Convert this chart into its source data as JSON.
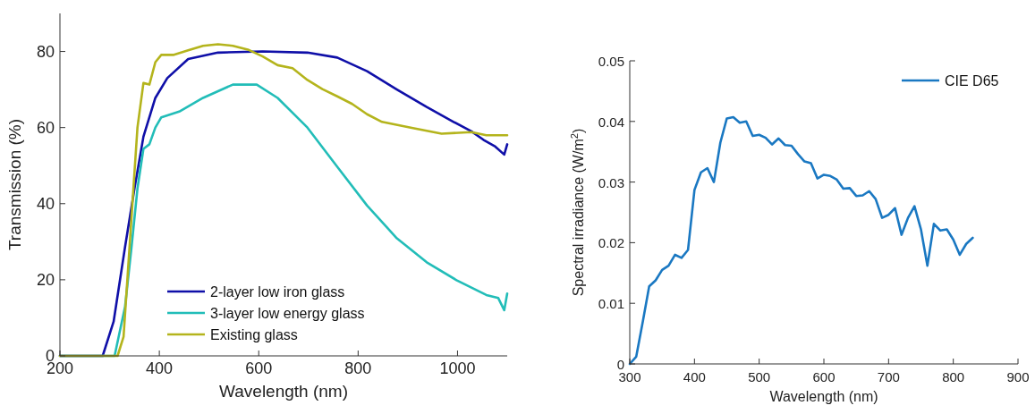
{
  "chart_data": [
    {
      "type": "line",
      "xlabel": "Wavelength (nm)",
      "ylabel": "Transmission (%)",
      "xlim": [
        200,
        1100
      ],
      "xticks": [
        200,
        400,
        600,
        800,
        1000
      ],
      "ylim": [
        0,
        90
      ],
      "yticks": [
        0,
        20,
        40,
        60,
        80
      ],
      "grid": false,
      "legend": "bottom",
      "line_style": "solid",
      "series": [
        {
          "name": "2-layer low iron glass",
          "color": "#0f0fa8",
          "x": [
            200,
            286,
            308,
            331,
            350,
            368,
            392,
            416,
            458,
            518,
            608,
            698,
            758,
            818,
            878,
            938,
            992,
            1028,
            1052,
            1076,
            1094,
            1100
          ],
          "values": [
            0,
            0,
            9,
            28.6,
            44,
            57.6,
            67.8,
            73,
            78,
            79.7,
            80,
            79.7,
            78.4,
            74.8,
            70,
            65.4,
            61.5,
            59,
            56.8,
            55,
            52.9,
            55.6
          ]
        },
        {
          "name": "3-layer low energy glass",
          "color": "#22bdb8",
          "x": [
            200,
            310,
            331,
            344,
            356,
            368,
            380,
            392,
            404,
            440,
            488,
            548,
            596,
            638,
            698,
            758,
            818,
            878,
            938,
            998,
            1058,
            1082,
            1094,
            1100
          ],
          "values": [
            0,
            0,
            12.9,
            28.5,
            44,
            54.4,
            55.6,
            60,
            62.7,
            64.2,
            67.8,
            71.3,
            71.3,
            67.8,
            60,
            49.7,
            39.5,
            30.9,
            24.6,
            19.9,
            16,
            15.2,
            12,
            16.4
          ]
        },
        {
          "name": "Existing glass",
          "color": "#b4b41c",
          "x": [
            200,
            316,
            328,
            344,
            356,
            368,
            380,
            392,
            404,
            428,
            458,
            488,
            518,
            548,
            578,
            608,
            638,
            668,
            698,
            728,
            758,
            788,
            818,
            848,
            908,
            968,
            1028,
            1058,
            1100
          ],
          "values": [
            0,
            0,
            5,
            36.4,
            60,
            71.7,
            71.3,
            77.2,
            79.1,
            79.1,
            80.3,
            81.5,
            81.9,
            81.5,
            80.5,
            78.7,
            76.4,
            75.6,
            72.5,
            70.1,
            68.2,
            66.2,
            63.5,
            61.5,
            59.9,
            58.4,
            58.8,
            58,
            58
          ]
        }
      ]
    },
    {
      "type": "line",
      "xlabel": "Wavelength (nm)",
      "ylabel": "Spectral irradiance (W/m$^{2}$)",
      "xlim": [
        300,
        900
      ],
      "xticks": [
        300,
        400,
        500,
        600,
        700,
        800,
        900
      ],
      "ylim": [
        0,
        0.05
      ],
      "yticks": [
        0,
        0.01,
        0.02,
        0.03,
        0.04,
        0.05
      ],
      "grid": false,
      "legend": "top right",
      "line_style": "solid",
      "series": [
        {
          "name": "CIE D65",
          "color": "#1a78c2",
          "x": [
            300,
            310,
            320,
            330,
            340,
            350,
            360,
            370,
            380,
            390,
            400,
            410,
            420,
            430,
            440,
            450,
            460,
            470,
            480,
            490,
            500,
            510,
            520,
            530,
            540,
            550,
            560,
            570,
            580,
            590,
            600,
            610,
            620,
            630,
            640,
            650,
            660,
            670,
            680,
            690,
            700,
            710,
            720,
            730,
            740,
            750,
            760,
            770,
            780,
            790,
            800,
            810,
            820,
            830
          ],
          "values": [
            0,
            0.0012,
            0.0069,
            0.0128,
            0.0138,
            0.0155,
            0.0162,
            0.018,
            0.0175,
            0.0188,
            0.0287,
            0.0316,
            0.0323,
            0.03,
            0.0365,
            0.0405,
            0.0407,
            0.0398,
            0.04,
            0.0376,
            0.0378,
            0.0373,
            0.0362,
            0.0372,
            0.0361,
            0.036,
            0.0346,
            0.0334,
            0.0331,
            0.0306,
            0.0312,
            0.031,
            0.0304,
            0.0289,
            0.029,
            0.0277,
            0.0278,
            0.0285,
            0.0272,
            0.0241,
            0.0246,
            0.0257,
            0.0213,
            0.0241,
            0.026,
            0.0222,
            0.0162,
            0.0231,
            0.022,
            0.0222,
            0.0205,
            0.018,
            0.0198,
            0.0208
          ]
        }
      ]
    }
  ]
}
